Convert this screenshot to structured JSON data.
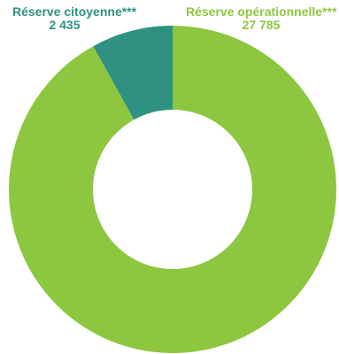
{
  "chart_data": {
    "type": "pie",
    "donut": true,
    "categories": [
      "Réserve citoyenne***",
      "Réserve opérationnelle***"
    ],
    "value_labels": [
      "2 435",
      "27 785"
    ],
    "values": [
      2435,
      27785
    ],
    "colors": [
      "#2e9182",
      "#8dc63f"
    ],
    "title": "",
    "legend": "none"
  }
}
